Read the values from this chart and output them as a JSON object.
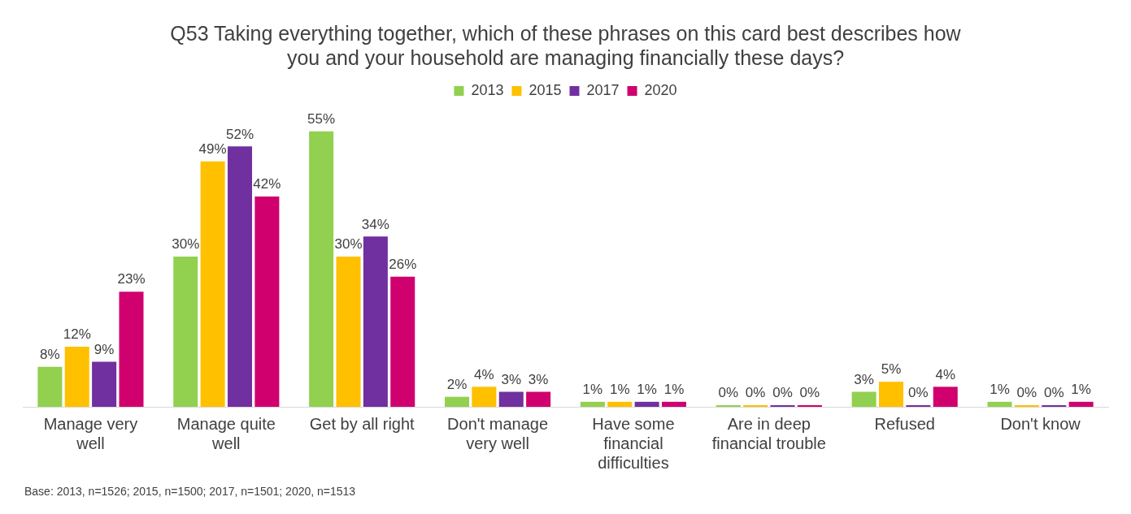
{
  "chart_data": {
    "type": "bar",
    "title": "Q53 Taking everything together, which of these phrases on this card best describes how you and your household are managing financially these days?",
    "categories": [
      "Manage very well",
      "Manage quite well",
      "Get by all right",
      "Don't manage very well",
      "Have some financial difficulties",
      "Are in deep financial trouble",
      "Refused",
      "Don't know"
    ],
    "series": [
      {
        "name": "2013",
        "color": "#92d050",
        "values": [
          8,
          30,
          55,
          2,
          1,
          0,
          3,
          1
        ],
        "value_labels": [
          "8%",
          "30%",
          "55%",
          "2%",
          "1%",
          "0%",
          "3%",
          "1%"
        ]
      },
      {
        "name": "2015",
        "color": "#ffc000",
        "values": [
          12,
          49,
          30,
          4,
          1,
          0,
          5,
          0
        ],
        "value_labels": [
          "12%",
          "49%",
          "30%",
          "4%",
          "1%",
          "0%",
          "5%",
          "0%"
        ]
      },
      {
        "name": "2017",
        "color": "#7030a0",
        "values": [
          9,
          52,
          34,
          3,
          1,
          0,
          0,
          0
        ],
        "value_labels": [
          "9%",
          "52%",
          "34%",
          "3%",
          "1%",
          "0%",
          "0%",
          "0%"
        ]
      },
      {
        "name": "2020",
        "color": "#d0006f",
        "values": [
          23,
          42,
          26,
          3,
          1,
          0,
          4,
          1
        ],
        "value_labels": [
          "23%",
          "42%",
          "26%",
          "3%",
          "1%",
          "0%",
          "4%",
          "1%"
        ]
      }
    ],
    "legend": "top",
    "grid": false,
    "annotations": [
      "Base: 2013, n=1526; 2015, n=1500; 2017, n=1501; 2020, n=1513"
    ]
  }
}
